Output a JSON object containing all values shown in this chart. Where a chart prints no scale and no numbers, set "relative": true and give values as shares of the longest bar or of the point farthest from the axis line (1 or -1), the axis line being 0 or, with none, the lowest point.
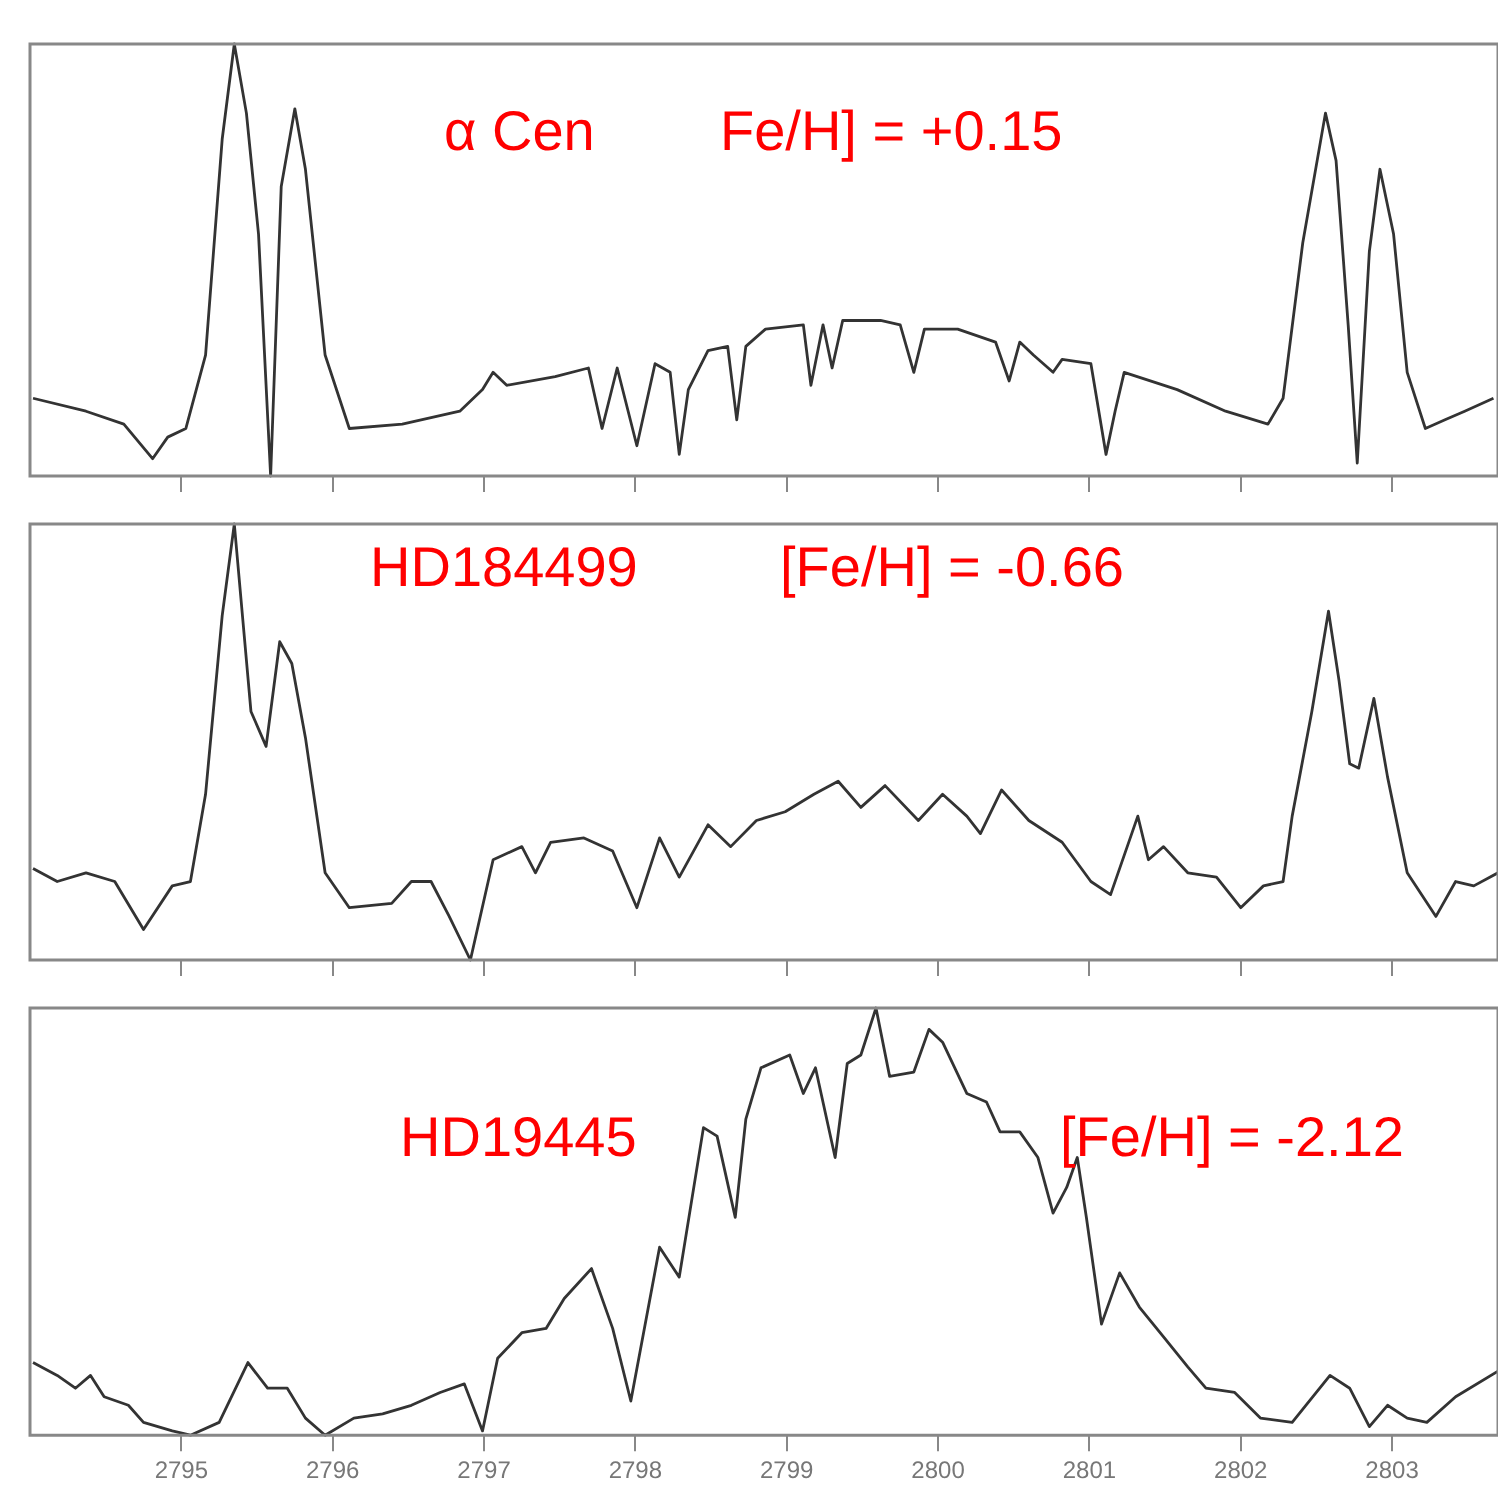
{
  "chart_data": [
    {
      "type": "line",
      "relative": true,
      "xlim": [
        2794,
        2803.7
      ],
      "xticks": [
        2795,
        2796,
        2797,
        2798,
        2799,
        2800,
        2801,
        2802,
        2803
      ],
      "tick_labels": false,
      "grid": false,
      "legend": false,
      "marker": "none",
      "line_style": "solid",
      "annotations": [
        "α Cen",
        "Fe/H] = +0.15"
      ],
      "x": [
        2794.02,
        2794.37,
        2794.62,
        2794.81,
        2794.91,
        2795.03,
        2795.16,
        2795.27,
        2795.35,
        2795.43,
        2795.51,
        2795.59,
        2795.66,
        2795.75,
        2795.82,
        2795.95,
        2796.11,
        2796.46,
        2796.84,
        2796.99,
        2797.06,
        2797.15,
        2797.47,
        2797.69,
        2797.78,
        2797.88,
        2798.01,
        2798.13,
        2798.23,
        2798.29,
        2798.35,
        2798.48,
        2798.61,
        2798.67,
        2798.73,
        2798.86,
        2799.11,
        2799.16,
        2799.24,
        2799.3,
        2799.37,
        2799.62,
        2799.75,
        2799.84,
        2799.91,
        2800.13,
        2800.38,
        2800.47,
        2800.54,
        2800.63,
        2800.76,
        2800.82,
        2801.01,
        2801.11,
        2801.17,
        2801.23,
        2801.58,
        2801.9,
        2802.18,
        2802.28,
        2802.41,
        2802.56,
        2802.63,
        2802.71,
        2802.77,
        2802.85,
        2802.92,
        2803.01,
        2803.1,
        2803.22,
        2803.35,
        2803.48,
        2803.67
      ],
      "series": [
        {
          "color": "#333333",
          "values": [
            0.18,
            0.15,
            0.12,
            0.04,
            0.09,
            0.11,
            0.28,
            0.78,
            1.0,
            0.84,
            0.56,
            0,
            0.67,
            0.85,
            0.71,
            0.28,
            0.11,
            0.12,
            0.15,
            0.2,
            0.24,
            0.21,
            0.23,
            0.25,
            0.11,
            0.25,
            0.07,
            0.26,
            0.24,
            0.05,
            0.2,
            0.29,
            0.3,
            0.13,
            0.3,
            0.34,
            0.35,
            0.21,
            0.35,
            0.25,
            0.36,
            0.36,
            0.35,
            0.24,
            0.34,
            0.34,
            0.31,
            0.22,
            0.31,
            0.28,
            0.24,
            0.27,
            0.26,
            0.05,
            0.15,
            0.24,
            0.2,
            0.15,
            0.12,
            0.18,
            0.54,
            0.84,
            0.73,
            0.35,
            0.03,
            0.52,
            0.71,
            0.56,
            0.24,
            0.11,
            0.13,
            0.15,
            0.18
          ]
        }
      ]
    },
    {
      "type": "line",
      "relative": true,
      "xlim": [
        2794,
        2803.7
      ],
      "xticks": [
        2795,
        2796,
        2797,
        2798,
        2799,
        2800,
        2801,
        2802,
        2803
      ],
      "tick_labels": false,
      "grid": false,
      "legend": false,
      "marker": "none",
      "line_style": "solid",
      "annotations": [
        "HD184499",
        "[Fe/H] = -0.66"
      ],
      "x": [
        2794.02,
        2794.18,
        2794.37,
        2794.56,
        2794.75,
        2794.94,
        2795.06,
        2795.16,
        2795.27,
        2795.35,
        2795.46,
        2795.56,
        2795.65,
        2795.73,
        2795.82,
        2795.95,
        2796.11,
        2796.39,
        2796.52,
        2796.65,
        2796.77,
        2796.91,
        2797.06,
        2797.25,
        2797.34,
        2797.44,
        2797.66,
        2797.85,
        2798.01,
        2798.16,
        2798.29,
        2798.48,
        2798.63,
        2798.8,
        2798.99,
        2799.18,
        2799.34,
        2799.49,
        2799.65,
        2799.87,
        2800.03,
        2800.19,
        2800.28,
        2800.42,
        2800.6,
        2800.82,
        2801.01,
        2801.14,
        2801.32,
        2801.39,
        2801.49,
        2801.65,
        2801.84,
        2802.0,
        2802.15,
        2802.28,
        2802.34,
        2802.47,
        2802.58,
        2802.65,
        2802.72,
        2802.78,
        2802.88,
        2802.97,
        2803.1,
        2803.29,
        2803.42,
        2803.54,
        2803.7
      ],
      "series": [
        {
          "color": "#333333",
          "values": [
            0.21,
            0.18,
            0.2,
            0.18,
            0.07,
            0.17,
            0.18,
            0.38,
            0.79,
            1.0,
            0.57,
            0.49,
            0.73,
            0.68,
            0.51,
            0.2,
            0.12,
            0.13,
            0.18,
            0.18,
            0.1,
            0,
            0.23,
            0.26,
            0.2,
            0.27,
            0.28,
            0.25,
            0.12,
            0.28,
            0.19,
            0.31,
            0.26,
            0.32,
            0.34,
            0.38,
            0.41,
            0.35,
            0.4,
            0.32,
            0.38,
            0.33,
            0.29,
            0.39,
            0.32,
            0.27,
            0.18,
            0.15,
            0.33,
            0.23,
            0.26,
            0.2,
            0.19,
            0.12,
            0.17,
            0.18,
            0.33,
            0.57,
            0.8,
            0.64,
            0.45,
            0.44,
            0.6,
            0.42,
            0.2,
            0.1,
            0.18,
            0.17,
            0.2
          ]
        }
      ]
    },
    {
      "type": "line",
      "relative": true,
      "xlim": [
        2794,
        2803.7
      ],
      "xticks": [
        2795,
        2796,
        2797,
        2798,
        2799,
        2800,
        2801,
        2802,
        2803
      ],
      "tick_labels": "x",
      "grid": false,
      "legend": false,
      "marker": "none",
      "line_style": "solid",
      "annotations": [
        "HD19445",
        "[Fe/H] = -2.12"
      ],
      "x": [
        2794.02,
        2794.18,
        2794.3,
        2794.4,
        2794.49,
        2794.65,
        2794.75,
        2794.94,
        2795.06,
        2795.25,
        2795.44,
        2795.57,
        2795.7,
        2795.82,
        2795.95,
        2796.14,
        2796.33,
        2796.52,
        2796.71,
        2796.87,
        2796.99,
        2797.09,
        2797.25,
        2797.41,
        2797.53,
        2797.71,
        2797.85,
        2797.97,
        2798.16,
        2798.29,
        2798.45,
        2798.54,
        2798.66,
        2798.73,
        2798.83,
        2799.02,
        2799.11,
        2799.19,
        2799.32,
        2799.4,
        2799.49,
        2799.59,
        2799.68,
        2799.84,
        2799.94,
        2800.03,
        2800.19,
        2800.32,
        2800.41,
        2800.54,
        2800.66,
        2800.76,
        2800.85,
        2800.92,
        2800.98,
        2801.08,
        2801.2,
        2801.33,
        2801.49,
        2801.65,
        2801.77,
        2801.96,
        2802.13,
        2802.34,
        2802.59,
        2802.72,
        2802.85,
        2802.97,
        2803.1,
        2803.23,
        2803.42,
        2803.7
      ],
      "series": [
        {
          "color": "#333333",
          "values": [
            0.17,
            0.14,
            0.11,
            0.14,
            0.09,
            0.07,
            0.03,
            0.01,
            0,
            0.03,
            0.17,
            0.11,
            0.11,
            0.04,
            0,
            0.04,
            0.05,
            0.07,
            0.1,
            0.12,
            0.01,
            0.18,
            0.24,
            0.25,
            0.32,
            0.39,
            0.25,
            0.08,
            0.44,
            0.37,
            0.72,
            0.7,
            0.51,
            0.74,
            0.86,
            0.89,
            0.8,
            0.86,
            0.65,
            0.87,
            0.89,
            1.0,
            0.84,
            0.85,
            0.95,
            0.92,
            0.8,
            0.78,
            0.71,
            0.71,
            0.65,
            0.52,
            0.58,
            0.65,
            0.51,
            0.26,
            0.38,
            0.3,
            0.23,
            0.16,
            0.11,
            0.1,
            0.04,
            0.03,
            0.14,
            0.11,
            0.02,
            0.07,
            0.04,
            0.03,
            0.09,
            0.15
          ]
        }
      ]
    }
  ]
}
